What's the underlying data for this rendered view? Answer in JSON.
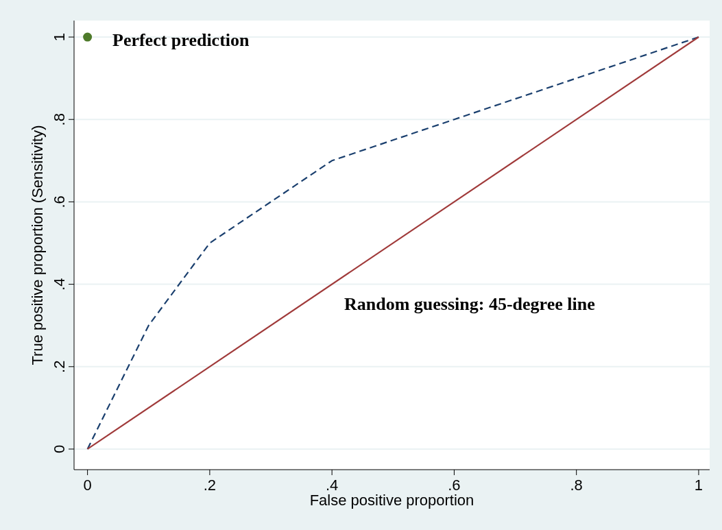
{
  "chart_data": {
    "type": "line",
    "xlabel": "False positive proportion",
    "ylabel": "True positive proportion (Sensitivity)",
    "xlim": [
      -0.022,
      1.018
    ],
    "ylim": [
      -0.05,
      1.04
    ],
    "xticks": [
      {
        "value": 0,
        "label": "0"
      },
      {
        "value": 0.2,
        "label": ".2"
      },
      {
        "value": 0.4,
        "label": ".4"
      },
      {
        "value": 0.6,
        "label": ".6"
      },
      {
        "value": 0.8,
        "label": ".8"
      },
      {
        "value": 1,
        "label": "1"
      }
    ],
    "yticks": [
      {
        "value": 0,
        "label": "0"
      },
      {
        "value": 0.2,
        "label": ".2"
      },
      {
        "value": 0.4,
        "label": ".4"
      },
      {
        "value": 0.6,
        "label": ".6"
      },
      {
        "value": 0.8,
        "label": ".8"
      },
      {
        "value": 1,
        "label": "1"
      }
    ],
    "grid": "y",
    "series": [
      {
        "color": "#1a3f6e",
        "line_style": "dashed",
        "marker": "none",
        "x": [
          0,
          0.1,
          0.2,
          0.4,
          0.6,
          0.8,
          1
        ],
        "values": [
          0,
          0.3,
          0.5,
          0.7,
          0.8,
          0.9,
          1
        ]
      },
      {
        "type": "line",
        "color": "#a03a3a",
        "line_style": "solid",
        "marker": "none",
        "x": [
          0,
          1
        ],
        "values": [
          0,
          1
        ]
      },
      {
        "type": "scatter",
        "color": "#4e7a2a",
        "marker": "circle",
        "x": [
          0
        ],
        "values": [
          1
        ]
      }
    ],
    "annotations": [
      "Perfect prediction",
      "Random guessing: 45-degree line"
    ]
  }
}
